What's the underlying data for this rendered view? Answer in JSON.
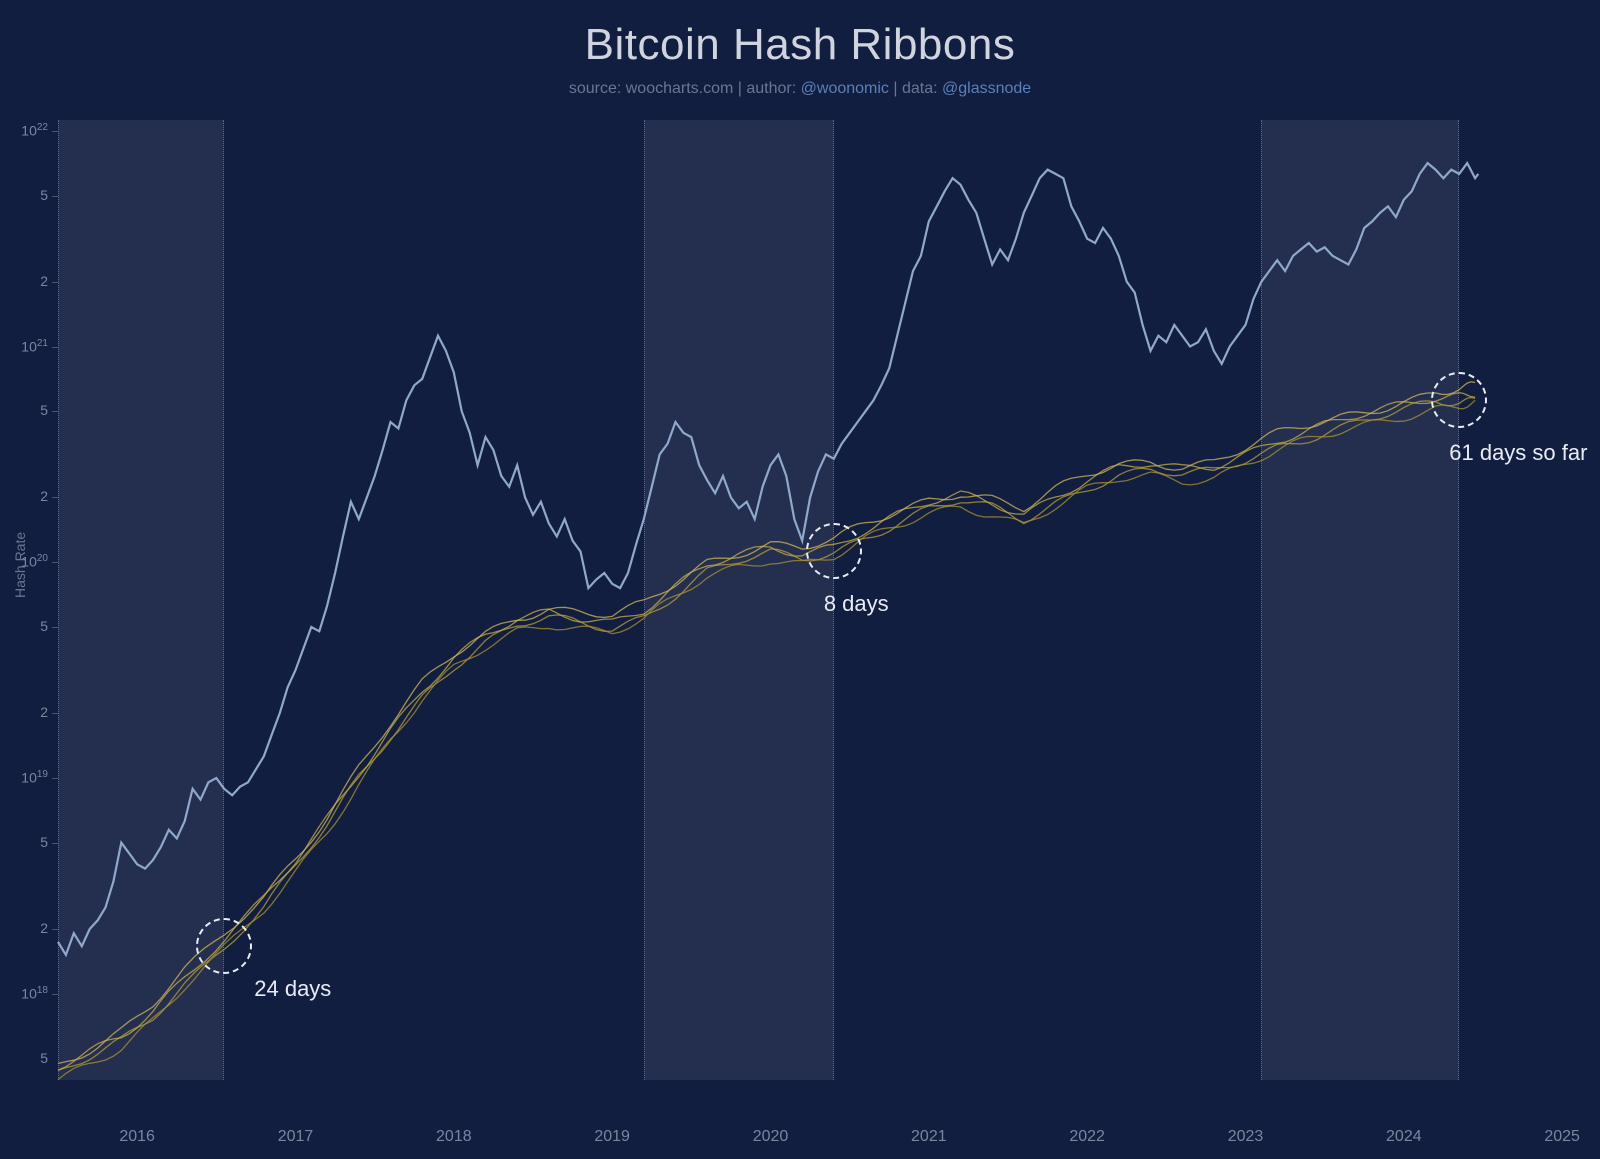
{
  "title": "Bitcoin Hash Ribbons",
  "subtitle": {
    "source_prefix": "source: ",
    "source": "woocharts.com",
    "author_prefix": " | author: ",
    "author": "@woonomic",
    "data_prefix": " | data: ",
    "data": "@glassnode"
  },
  "chart": {
    "type": "line",
    "background_color": "#121e3f",
    "text_color": "#7a86a0",
    "link_color": "#5a80b8",
    "title_color": "#d0d4de",
    "title_fontsize": 44,
    "subtitle_fontsize": 16,
    "annotation_fontsize": 22,
    "tick_fontsize": 14,
    "y_axis": {
      "label": "Hash Rate",
      "scale": "log",
      "min_exp": 17.6,
      "max_exp": 22.05,
      "major_ticks_exp": [
        18,
        19,
        20,
        21,
        22
      ],
      "minor_ticks": [
        2,
        5
      ],
      "major_label_format": "10^{exp}"
    },
    "x_axis": {
      "min_year": 2015.5,
      "max_year": 2025.1,
      "ticks": [
        2016,
        2017,
        2018,
        2019,
        2020,
        2021,
        2022,
        2023,
        2024,
        2025
      ]
    },
    "halving_bands": [
      {
        "start_year": 2015.5,
        "end_year": 2016.55
      },
      {
        "start_year": 2019.2,
        "end_year": 2020.4
      },
      {
        "start_year": 2023.1,
        "end_year": 2024.35
      }
    ],
    "band_fill": "rgba(200,210,230,0.10)",
    "band_border": "#5a6685",
    "annotations": [
      {
        "label": "24 days",
        "circle_x_year": 2016.55,
        "circle_y_exp": 18.22,
        "circle_r": 28,
        "text_dx": 30,
        "text_dy": 30
      },
      {
        "label": "8 days",
        "circle_x_year": 2020.4,
        "circle_y_exp": 20.05,
        "circle_r": 28,
        "text_dx": -10,
        "text_dy": 40
      },
      {
        "label": "61 days so far",
        "circle_x_year": 2024.35,
        "circle_y_exp": 20.75,
        "circle_r": 28,
        "text_dx": -10,
        "text_dy": 40
      }
    ],
    "circle_stroke": "#e8ecf4",
    "price_series": {
      "color": "#8fa8cc",
      "width": 2.2,
      "points": [
        [
          2015.5,
          18.24
        ],
        [
          2015.55,
          18.18
        ],
        [
          2015.6,
          18.28
        ],
        [
          2015.65,
          18.22
        ],
        [
          2015.7,
          18.3
        ],
        [
          2015.75,
          18.34
        ],
        [
          2015.8,
          18.4
        ],
        [
          2015.85,
          18.52
        ],
        [
          2015.9,
          18.7
        ],
        [
          2015.95,
          18.65
        ],
        [
          2016.0,
          18.6
        ],
        [
          2016.05,
          18.58
        ],
        [
          2016.1,
          18.62
        ],
        [
          2016.15,
          18.68
        ],
        [
          2016.2,
          18.76
        ],
        [
          2016.25,
          18.72
        ],
        [
          2016.3,
          18.8
        ],
        [
          2016.35,
          18.95
        ],
        [
          2016.4,
          18.9
        ],
        [
          2016.45,
          18.98
        ],
        [
          2016.5,
          19.0
        ],
        [
          2016.55,
          18.95
        ],
        [
          2016.6,
          18.92
        ],
        [
          2016.65,
          18.96
        ],
        [
          2016.7,
          18.98
        ],
        [
          2016.75,
          19.04
        ],
        [
          2016.8,
          19.1
        ],
        [
          2016.85,
          19.2
        ],
        [
          2016.9,
          19.3
        ],
        [
          2016.95,
          19.42
        ],
        [
          2017.0,
          19.5
        ],
        [
          2017.05,
          19.6
        ],
        [
          2017.1,
          19.7
        ],
        [
          2017.15,
          19.68
        ],
        [
          2017.2,
          19.8
        ],
        [
          2017.25,
          19.95
        ],
        [
          2017.3,
          20.12
        ],
        [
          2017.35,
          20.28
        ],
        [
          2017.4,
          20.2
        ],
        [
          2017.45,
          20.3
        ],
        [
          2017.5,
          20.4
        ],
        [
          2017.55,
          20.52
        ],
        [
          2017.6,
          20.65
        ],
        [
          2017.65,
          20.62
        ],
        [
          2017.7,
          20.75
        ],
        [
          2017.75,
          20.82
        ],
        [
          2017.8,
          20.85
        ],
        [
          2017.85,
          20.95
        ],
        [
          2017.9,
          21.05
        ],
        [
          2017.95,
          20.98
        ],
        [
          2018.0,
          20.88
        ],
        [
          2018.05,
          20.7
        ],
        [
          2018.1,
          20.6
        ],
        [
          2018.15,
          20.45
        ],
        [
          2018.2,
          20.58
        ],
        [
          2018.25,
          20.52
        ],
        [
          2018.3,
          20.4
        ],
        [
          2018.35,
          20.35
        ],
        [
          2018.4,
          20.45
        ],
        [
          2018.45,
          20.3
        ],
        [
          2018.5,
          20.22
        ],
        [
          2018.55,
          20.28
        ],
        [
          2018.6,
          20.18
        ],
        [
          2018.65,
          20.12
        ],
        [
          2018.7,
          20.2
        ],
        [
          2018.75,
          20.1
        ],
        [
          2018.8,
          20.05
        ],
        [
          2018.85,
          19.88
        ],
        [
          2018.9,
          19.92
        ],
        [
          2018.95,
          19.95
        ],
        [
          2019.0,
          19.9
        ],
        [
          2019.05,
          19.88
        ],
        [
          2019.1,
          19.95
        ],
        [
          2019.15,
          20.08
        ],
        [
          2019.2,
          20.2
        ],
        [
          2019.25,
          20.35
        ],
        [
          2019.3,
          20.5
        ],
        [
          2019.35,
          20.55
        ],
        [
          2019.4,
          20.65
        ],
        [
          2019.45,
          20.6
        ],
        [
          2019.5,
          20.58
        ],
        [
          2019.55,
          20.45
        ],
        [
          2019.6,
          20.38
        ],
        [
          2019.65,
          20.32
        ],
        [
          2019.7,
          20.4
        ],
        [
          2019.75,
          20.3
        ],
        [
          2019.8,
          20.25
        ],
        [
          2019.85,
          20.28
        ],
        [
          2019.9,
          20.2
        ],
        [
          2019.95,
          20.35
        ],
        [
          2020.0,
          20.45
        ],
        [
          2020.05,
          20.5
        ],
        [
          2020.1,
          20.4
        ],
        [
          2020.15,
          20.2
        ],
        [
          2020.2,
          20.1
        ],
        [
          2020.25,
          20.3
        ],
        [
          2020.3,
          20.42
        ],
        [
          2020.35,
          20.5
        ],
        [
          2020.4,
          20.48
        ],
        [
          2020.45,
          20.55
        ],
        [
          2020.5,
          20.6
        ],
        [
          2020.55,
          20.65
        ],
        [
          2020.6,
          20.7
        ],
        [
          2020.65,
          20.75
        ],
        [
          2020.7,
          20.82
        ],
        [
          2020.75,
          20.9
        ],
        [
          2020.8,
          21.05
        ],
        [
          2020.85,
          21.2
        ],
        [
          2020.9,
          21.35
        ],
        [
          2020.95,
          21.42
        ],
        [
          2021.0,
          21.58
        ],
        [
          2021.05,
          21.65
        ],
        [
          2021.1,
          21.72
        ],
        [
          2021.15,
          21.78
        ],
        [
          2021.2,
          21.75
        ],
        [
          2021.25,
          21.68
        ],
        [
          2021.3,
          21.62
        ],
        [
          2021.35,
          21.5
        ],
        [
          2021.4,
          21.38
        ],
        [
          2021.45,
          21.45
        ],
        [
          2021.5,
          21.4
        ],
        [
          2021.55,
          21.5
        ],
        [
          2021.6,
          21.62
        ],
        [
          2021.65,
          21.7
        ],
        [
          2021.7,
          21.78
        ],
        [
          2021.75,
          21.82
        ],
        [
          2021.8,
          21.8
        ],
        [
          2021.85,
          21.78
        ],
        [
          2021.9,
          21.65
        ],
        [
          2021.95,
          21.58
        ],
        [
          2022.0,
          21.5
        ],
        [
          2022.05,
          21.48
        ],
        [
          2022.1,
          21.55
        ],
        [
          2022.15,
          21.5
        ],
        [
          2022.2,
          21.42
        ],
        [
          2022.25,
          21.3
        ],
        [
          2022.3,
          21.25
        ],
        [
          2022.35,
          21.1
        ],
        [
          2022.4,
          20.98
        ],
        [
          2022.45,
          21.05
        ],
        [
          2022.5,
          21.02
        ],
        [
          2022.55,
          21.1
        ],
        [
          2022.6,
          21.05
        ],
        [
          2022.65,
          21.0
        ],
        [
          2022.7,
          21.02
        ],
        [
          2022.75,
          21.08
        ],
        [
          2022.8,
          20.98
        ],
        [
          2022.85,
          20.92
        ],
        [
          2022.9,
          21.0
        ],
        [
          2022.95,
          21.05
        ],
        [
          2023.0,
          21.1
        ],
        [
          2023.05,
          21.22
        ],
        [
          2023.1,
          21.3
        ],
        [
          2023.15,
          21.35
        ],
        [
          2023.2,
          21.4
        ],
        [
          2023.25,
          21.35
        ],
        [
          2023.3,
          21.42
        ],
        [
          2023.35,
          21.45
        ],
        [
          2023.4,
          21.48
        ],
        [
          2023.45,
          21.44
        ],
        [
          2023.5,
          21.46
        ],
        [
          2023.55,
          21.42
        ],
        [
          2023.6,
          21.4
        ],
        [
          2023.65,
          21.38
        ],
        [
          2023.7,
          21.45
        ],
        [
          2023.75,
          21.55
        ],
        [
          2023.8,
          21.58
        ],
        [
          2023.85,
          21.62
        ],
        [
          2023.9,
          21.65
        ],
        [
          2023.95,
          21.6
        ],
        [
          2024.0,
          21.68
        ],
        [
          2024.05,
          21.72
        ],
        [
          2024.1,
          21.8
        ],
        [
          2024.15,
          21.85
        ],
        [
          2024.2,
          21.82
        ],
        [
          2024.25,
          21.78
        ],
        [
          2024.3,
          21.82
        ],
        [
          2024.35,
          21.8
        ],
        [
          2024.4,
          21.85
        ],
        [
          2024.45,
          21.78
        ],
        [
          2024.47,
          21.8
        ]
      ]
    },
    "hash_ribbon": {
      "colors": [
        "#b8a039",
        "#c8b04a",
        "#ab9230",
        "#d1ba5a"
      ],
      "width": 1.3,
      "opacity": 0.75,
      "base_points": [
        [
          2015.5,
          17.62
        ],
        [
          2015.7,
          17.7
        ],
        [
          2015.9,
          17.78
        ],
        [
          2016.1,
          17.9
        ],
        [
          2016.3,
          18.05
        ],
        [
          2016.55,
          18.22
        ],
        [
          2016.8,
          18.4
        ],
        [
          2017.0,
          18.58
        ],
        [
          2017.2,
          18.78
        ],
        [
          2017.4,
          19.0
        ],
        [
          2017.6,
          19.2
        ],
        [
          2017.8,
          19.38
        ],
        [
          2018.0,
          19.52
        ],
        [
          2018.2,
          19.62
        ],
        [
          2018.4,
          19.7
        ],
        [
          2018.6,
          19.74
        ],
        [
          2018.8,
          19.72
        ],
        [
          2019.0,
          19.7
        ],
        [
          2019.2,
          19.75
        ],
        [
          2019.4,
          19.85
        ],
        [
          2019.6,
          19.95
        ],
        [
          2019.8,
          20.0
        ],
        [
          2020.0,
          20.04
        ],
        [
          2020.2,
          20.02
        ],
        [
          2020.4,
          20.05
        ],
        [
          2020.6,
          20.12
        ],
        [
          2020.8,
          20.18
        ],
        [
          2021.0,
          20.24
        ],
        [
          2021.2,
          20.28
        ],
        [
          2021.4,
          20.25
        ],
        [
          2021.6,
          20.2
        ],
        [
          2021.8,
          20.28
        ],
        [
          2022.0,
          20.35
        ],
        [
          2022.2,
          20.4
        ],
        [
          2022.4,
          20.42
        ],
        [
          2022.6,
          20.4
        ],
        [
          2022.8,
          20.42
        ],
        [
          2023.0,
          20.48
        ],
        [
          2023.2,
          20.54
        ],
        [
          2023.4,
          20.58
        ],
        [
          2023.6,
          20.62
        ],
        [
          2023.8,
          20.66
        ],
        [
          2024.0,
          20.7
        ],
        [
          2024.2,
          20.74
        ],
        [
          2024.35,
          20.75
        ],
        [
          2024.45,
          20.76
        ]
      ],
      "offsets_exp": [
        0.0,
        0.03,
        -0.02,
        0.05
      ]
    }
  }
}
